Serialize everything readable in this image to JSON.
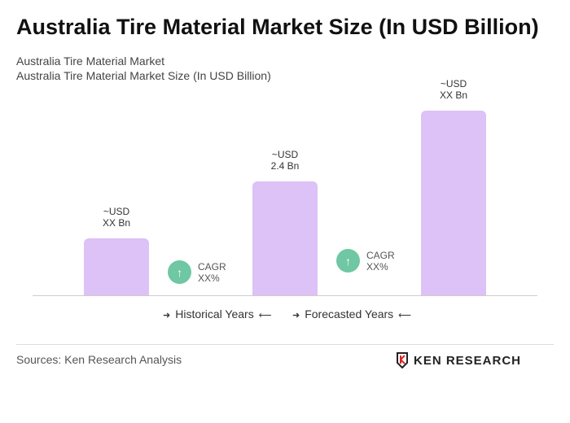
{
  "title": "Australia Tire Material Market Size (In USD Billion)",
  "subtitle1": "Australia Tire Material Market",
  "subtitle2": "Australia Tire Material Market Size (In USD Billion)",
  "chart_data": {
    "type": "bar",
    "title": "Australia Tire Material Market Size (In USD Billion)",
    "categories": [
      "",
      "",
      ""
    ],
    "values": [
      1.2,
      2.4,
      3.9
    ],
    "data_labels": [
      [
        "~USD",
        "XX Bn"
      ],
      [
        "~USD",
        "2.4 Bn"
      ],
      [
        "~USD",
        "XX Bn"
      ]
    ],
    "bar_color": "#dcc2f6",
    "grid": false,
    "cagr": [
      {
        "label": "CAGR",
        "value": "XX%"
      },
      {
        "label": "CAGR",
        "value": "XX%"
      }
    ],
    "cagr_color": "#6fc7a3",
    "legend": [
      "Historical Years",
      "Forecasted Years"
    ]
  },
  "source": "Sources: Ken Research Analysis",
  "logo_text": "KEN RESEARCH"
}
